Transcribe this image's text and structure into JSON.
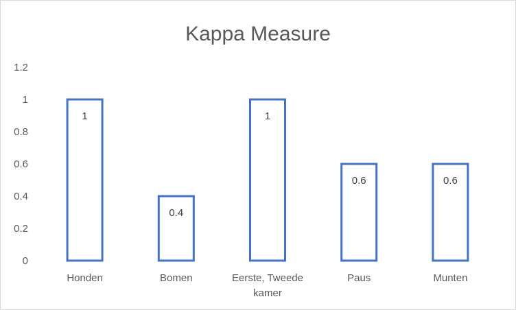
{
  "chart_data": {
    "type": "bar",
    "title": "Kappa Measure",
    "categories": [
      [
        "Honden"
      ],
      [
        "Bomen"
      ],
      [
        "Eerste, Tweede",
        "kamer"
      ],
      [
        "Paus"
      ],
      [
        "Munten"
      ]
    ],
    "values": [
      1,
      0.4,
      1,
      0.6,
      0.6
    ],
    "data_labels": [
      "1",
      "0.4",
      "1",
      "0.6",
      "0.6"
    ],
    "yticks": [
      "0",
      "0.2",
      "0.4",
      "0.6",
      "0.8",
      "1",
      "1.2"
    ],
    "ylim": [
      0,
      1.2
    ],
    "grid": false,
    "legend": "none",
    "bar_style": "outline",
    "bar_color": "#4472c4"
  }
}
